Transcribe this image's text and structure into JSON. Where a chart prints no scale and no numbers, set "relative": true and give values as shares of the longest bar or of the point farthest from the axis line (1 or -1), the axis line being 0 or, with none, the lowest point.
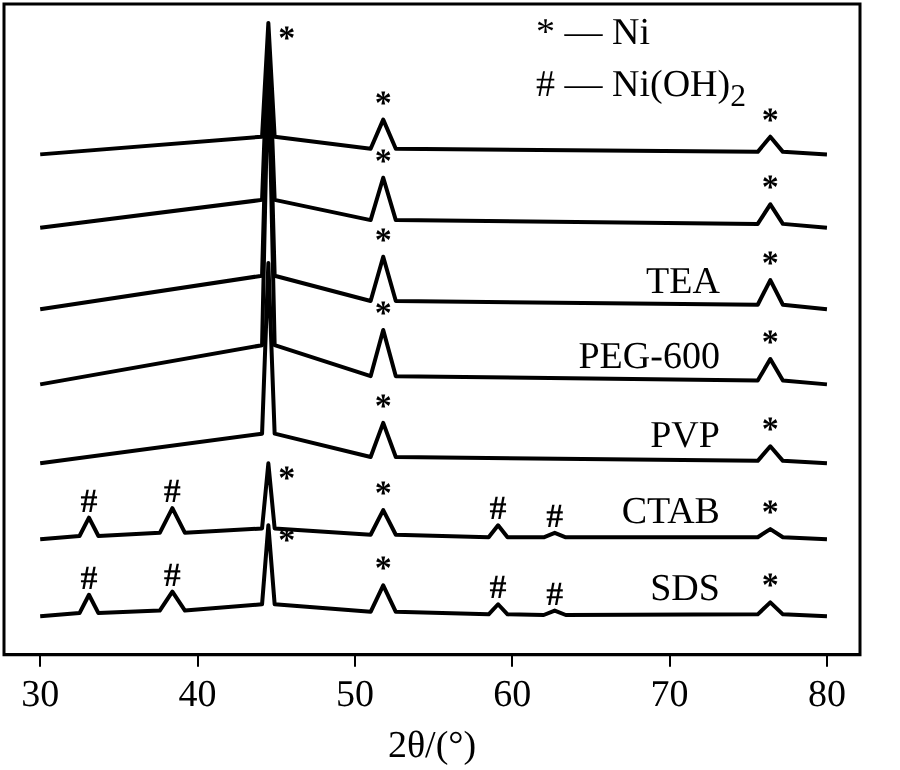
{
  "chart_data": {
    "type": "line",
    "relative": true,
    "xlabel": "2θ/(°)",
    "xlim": [
      27.7,
      82.1
    ],
    "xticks": [
      30,
      40,
      50,
      60,
      70,
      80
    ],
    "grid": false,
    "legend": false,
    "marker": "none",
    "line_style": "solid",
    "series": [
      {
        "color": "#000000",
        "x": [
          30,
          44.1,
          44.5,
          44.9,
          51,
          51.8,
          52.6,
          75.6,
          76.4,
          77.2,
          80
        ],
        "values": [
          0.792,
          0.82,
          1.0,
          0.82,
          0.801,
          0.847,
          0.801,
          0.796,
          0.82,
          0.796,
          0.792
        ]
      },
      {
        "color": "#000000",
        "x": [
          30,
          44.1,
          44.5,
          44.9,
          51,
          51.8,
          52.6,
          75.6,
          76.4,
          77.2,
          80
        ],
        "values": [
          0.676,
          0.72,
          0.98,
          0.72,
          0.688,
          0.755,
          0.688,
          0.682,
          0.713,
          0.682,
          0.676
        ]
      },
      {
        "name": "TEA",
        "color": "#000000",
        "x": [
          30,
          44.1,
          44.5,
          44.9,
          51,
          51.8,
          52.6,
          75.6,
          76.4,
          77.2,
          80
        ],
        "values": [
          0.547,
          0.6,
          0.96,
          0.6,
          0.56,
          0.63,
          0.56,
          0.554,
          0.593,
          0.554,
          0.547
        ]
      },
      {
        "name": "PEG-600",
        "color": "#000000",
        "x": [
          30,
          44.1,
          44.5,
          44.9,
          51,
          51.8,
          52.6,
          75.6,
          76.4,
          77.2,
          80
        ],
        "values": [
          0.428,
          0.49,
          0.94,
          0.49,
          0.441,
          0.514,
          0.441,
          0.434,
          0.468,
          0.434,
          0.428
        ]
      },
      {
        "name": "PVP",
        "color": "#000000",
        "x": [
          30,
          44.1,
          44.5,
          44.9,
          51,
          51.8,
          52.6,
          75.6,
          76.4,
          77.2,
          80
        ],
        "values": [
          0.303,
          0.35,
          0.62,
          0.35,
          0.313,
          0.367,
          0.313,
          0.307,
          0.33,
          0.307,
          0.303
        ]
      },
      {
        "name": "CTAB",
        "color": "#000000",
        "x": [
          30,
          32.5,
          33.1,
          33.7,
          37.6,
          38.4,
          39.2,
          44.1,
          44.5,
          44.9,
          51,
          51.8,
          52.6,
          58.5,
          59.1,
          59.7,
          62,
          62.7,
          63.4,
          75.6,
          76.4,
          77.2,
          80
        ],
        "values": [
          0.183,
          0.188,
          0.217,
          0.188,
          0.193,
          0.232,
          0.193,
          0.2,
          0.303,
          0.2,
          0.19,
          0.229,
          0.19,
          0.186,
          0.205,
          0.186,
          0.186,
          0.193,
          0.186,
          0.186,
          0.199,
          0.186,
          0.183
        ]
      },
      {
        "name": "SDS",
        "color": "#000000",
        "x": [
          30,
          32.5,
          33.1,
          33.7,
          37.6,
          38.4,
          39.2,
          44.1,
          44.5,
          44.9,
          51,
          51.8,
          52.6,
          58.5,
          59.1,
          59.7,
          62,
          62.7,
          63.4,
          75.6,
          76.4,
          77.2,
          80
        ],
        "values": [
          0.061,
          0.066,
          0.095,
          0.066,
          0.07,
          0.1,
          0.07,
          0.08,
          0.205,
          0.08,
          0.068,
          0.11,
          0.068,
          0.064,
          0.08,
          0.064,
          0.063,
          0.07,
          0.063,
          0.064,
          0.083,
          0.064,
          0.061
        ]
      }
    ],
    "annotations": [
      "* — Ni",
      "# — Ni(OH)$_{2}$",
      {
        "text": "*",
        "x": 44.5,
        "y": 1.0
      },
      {
        "text": "*",
        "x": 51.8,
        "y": 0.847
      },
      {
        "text": "*",
        "x": 76.4,
        "y": 0.82
      },
      {
        "text": "*",
        "x": 51.8,
        "y": 0.755
      },
      {
        "text": "*",
        "x": 76.4,
        "y": 0.713
      },
      {
        "text": "*",
        "x": 51.8,
        "y": 0.63
      },
      {
        "text": "*",
        "x": 76.4,
        "y": 0.593
      },
      {
        "text": "*",
        "x": 51.8,
        "y": 0.514
      },
      {
        "text": "*",
        "x": 76.4,
        "y": 0.468
      },
      {
        "text": "*",
        "x": 51.8,
        "y": 0.367
      },
      {
        "text": "*",
        "x": 76.4,
        "y": 0.33
      },
      {
        "text": "#",
        "x": 33.1,
        "y": 0.217
      },
      {
        "text": "#",
        "x": 38.4,
        "y": 0.232
      },
      {
        "text": "*",
        "x": 44.5,
        "y": 0.303
      },
      {
        "text": "*",
        "x": 51.8,
        "y": 0.229
      },
      {
        "text": "#",
        "x": 59.1,
        "y": 0.205
      },
      {
        "text": "#",
        "x": 62.7,
        "y": 0.193
      },
      {
        "text": "*",
        "x": 76.4,
        "y": 0.199
      },
      {
        "text": "#",
        "x": 33.1,
        "y": 0.095
      },
      {
        "text": "#",
        "x": 38.4,
        "y": 0.1
      },
      {
        "text": "*",
        "x": 44.5,
        "y": 0.205
      },
      {
        "text": "*",
        "x": 51.8,
        "y": 0.11
      },
      {
        "text": "#",
        "x": 59.1,
        "y": 0.08
      },
      {
        "text": "#",
        "x": 62.7,
        "y": 0.07
      },
      {
        "text": "*",
        "x": 76.4,
        "y": 0.083
      }
    ]
  }
}
